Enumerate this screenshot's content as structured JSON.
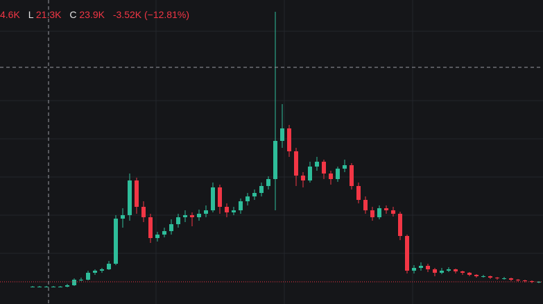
{
  "chart_data": {
    "type": "candlestick",
    "legend": {
      "high_partial": "4.6K",
      "low_key": "L",
      "low": "21.3K",
      "close_key": "C",
      "close": "23.9K",
      "change": "-3.52K (−12.81%)"
    },
    "up_color": "#2ebd9a",
    "down_color": "#f23645",
    "ylim": [
      0,
      438
    ],
    "candles": [
      [
        25,
        26,
        24,
        25
      ],
      [
        25,
        26,
        24,
        25
      ],
      [
        25,
        26,
        24,
        25
      ],
      [
        25,
        26,
        24,
        25
      ],
      [
        25,
        26,
        24,
        25
      ],
      [
        25,
        29,
        24,
        27
      ],
      [
        27,
        37,
        26,
        35
      ],
      [
        35,
        38,
        33,
        35
      ],
      [
        35,
        48,
        34,
        45
      ],
      [
        45,
        50,
        42,
        48
      ],
      [
        48,
        52,
        45,
        50
      ],
      [
        50,
        62,
        49,
        58
      ],
      [
        58,
        128,
        56,
        123
      ],
      [
        123,
        138,
        110,
        128
      ],
      [
        128,
        188,
        120,
        178
      ],
      [
        178,
        182,
        130,
        140
      ],
      [
        140,
        148,
        118,
        125
      ],
      [
        125,
        130,
        88,
        95
      ],
      [
        95,
        104,
        90,
        100
      ],
      [
        100,
        110,
        96,
        105
      ],
      [
        105,
        122,
        100,
        115
      ],
      [
        115,
        130,
        110,
        125
      ],
      [
        125,
        135,
        118,
        128
      ],
      [
        128,
        132,
        112,
        125
      ],
      [
        125,
        136,
        120,
        130
      ],
      [
        130,
        142,
        125,
        135
      ],
      [
        135,
        175,
        132,
        168
      ],
      [
        168,
        172,
        130,
        140
      ],
      [
        140,
        145,
        125,
        132
      ],
      [
        132,
        140,
        128,
        135
      ],
      [
        135,
        152,
        130,
        148
      ],
      [
        148,
        160,
        142,
        155
      ],
      [
        155,
        165,
        150,
        160
      ],
      [
        160,
        175,
        155,
        170
      ],
      [
        170,
        184,
        165,
        180
      ],
      [
        180,
        421,
        135,
        235
      ],
      [
        235,
        288,
        225,
        253
      ],
      [
        253,
        258,
        212,
        220
      ],
      [
        220,
        225,
        170,
        185
      ],
      [
        185,
        190,
        168,
        178
      ],
      [
        178,
        205,
        175,
        198
      ],
      [
        198,
        212,
        192,
        205
      ],
      [
        205,
        208,
        180,
        188
      ],
      [
        188,
        192,
        172,
        180
      ],
      [
        180,
        198,
        176,
        195
      ],
      [
        195,
        208,
        190,
        200
      ],
      [
        200,
        203,
        165,
        170
      ],
      [
        170,
        175,
        145,
        150
      ],
      [
        150,
        155,
        130,
        135
      ],
      [
        135,
        140,
        120,
        125
      ],
      [
        125,
        142,
        122,
        138
      ],
      [
        138,
        142,
        130,
        135
      ],
      [
        135,
        140,
        126,
        130
      ],
      [
        130,
        133,
        92,
        98
      ],
      [
        98,
        100,
        44,
        48
      ],
      [
        48,
        56,
        44,
        52
      ],
      [
        52,
        60,
        48,
        55
      ],
      [
        55,
        58,
        46,
        50
      ],
      [
        50,
        52,
        40,
        45
      ],
      [
        45,
        52,
        43,
        48
      ],
      [
        48,
        53,
        46,
        50
      ],
      [
        50,
        51,
        44,
        47
      ],
      [
        47,
        48,
        42,
        45
      ],
      [
        45,
        46,
        40,
        42
      ],
      [
        42,
        43,
        38,
        40
      ],
      [
        40,
        42,
        38,
        40
      ],
      [
        40,
        41,
        36,
        38
      ],
      [
        38,
        39,
        35,
        37
      ],
      [
        37,
        39,
        35,
        37
      ],
      [
        37,
        38,
        33,
        35
      ],
      [
        35,
        36,
        32,
        34
      ],
      [
        34,
        35,
        31,
        33
      ],
      [
        33,
        34,
        30,
        32
      ],
      [
        32,
        33,
        30,
        32
      ]
    ]
  }
}
